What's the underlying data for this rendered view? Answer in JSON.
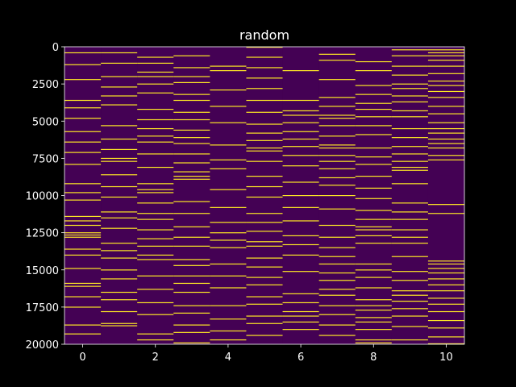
{
  "chart_data": {
    "type": "heatmap",
    "title": "random",
    "xlabel": "",
    "ylabel": "",
    "columns": 11,
    "rows": 20000,
    "xlim": [
      -0.5,
      10.5
    ],
    "ylim": [
      20000,
      0
    ],
    "y_inverted": true,
    "x_ticks": [
      0,
      2,
      4,
      6,
      8,
      10
    ],
    "x_tick_labels": [
      "0",
      "2",
      "4",
      "6",
      "8",
      "10"
    ],
    "y_ticks": [
      0,
      2500,
      5000,
      7500,
      10000,
      12500,
      15000,
      17500,
      20000
    ],
    "y_tick_labels": [
      "0",
      "2500",
      "5000",
      "7500",
      "10000",
      "12500",
      "15000",
      "17500",
      "20000"
    ],
    "value_range": [
      0,
      1
    ],
    "colormap": "viridis",
    "low_color": "#440154",
    "high_color": "#fde725",
    "background_color": "#000000",
    "text_color": "#ffffff",
    "grid": false,
    "legend": "none",
    "cells_with_value_1": [
      [
        400,
        1200,
        2200,
        3600,
        4100,
        4800,
        5700,
        6400,
        7100,
        7900,
        9200,
        9800,
        10300,
        11400,
        11700,
        12000,
        12500,
        12650,
        12800,
        13600,
        14000,
        14900,
        15900,
        16100,
        16800,
        17500,
        18700,
        19300
      ],
      [
        400,
        1100,
        2000,
        2700,
        3300,
        3900,
        5300,
        6200,
        6900,
        7500,
        7700,
        8600,
        9400,
        10100,
        11100,
        11500,
        12200,
        13200,
        13700,
        14200,
        15000,
        15600,
        16500,
        17000,
        17800,
        18600,
        18750
      ],
      [
        700,
        1100,
        1700,
        2000,
        2500,
        3100,
        4200,
        4900,
        5500,
        6000,
        6400,
        7200,
        8100,
        9200,
        9600,
        9800,
        10500,
        11200,
        11600,
        12300,
        12900,
        13400,
        14000,
        14300,
        15400,
        16300,
        17200,
        18000,
        19300,
        19700
      ],
      [
        600,
        1400,
        2000,
        2400,
        3200,
        3600,
        4400,
        4900,
        5600,
        6100,
        6500,
        7200,
        7800,
        8400,
        8700,
        8900,
        10400,
        11200,
        12100,
        12800,
        13400,
        14300,
        14700,
        15400,
        15900,
        16500,
        17400,
        17900,
        18700,
        19200,
        19900
      ],
      [
        1300,
        1600,
        2900,
        4000,
        5100,
        6600,
        7600,
        8200,
        9600,
        10800,
        11800,
        12500,
        13000,
        13500,
        14600,
        15400,
        16200,
        17400,
        18300,
        19100,
        19700
      ],
      [
        0,
        700,
        1400,
        2100,
        2800,
        3600,
        4400,
        5200,
        5800,
        6300,
        6800,
        7000,
        7700,
        8700,
        9400,
        10100,
        11200,
        11800,
        12400,
        13100,
        13400,
        14200,
        14800,
        15500,
        16000,
        16800,
        17300,
        18100,
        18600,
        19400
      ],
      [
        1600,
        3600,
        4300,
        4600,
        5100,
        5700,
        6200,
        6700,
        7300,
        8000,
        9100,
        10000,
        10800,
        11700,
        12700,
        13300,
        14000,
        15100,
        16600,
        17200,
        17800,
        18100,
        18500,
        19000
      ],
      [
        500,
        900,
        2200,
        3400,
        4000,
        4600,
        4800,
        5300,
        6000,
        6600,
        6800,
        7300,
        7700,
        8200,
        8800,
        9300,
        10000,
        10900,
        12000,
        12800,
        13500,
        14100,
        14600,
        15200,
        15700,
        16300,
        16700,
        17400,
        18000,
        18700,
        19400
      ],
      [
        1000,
        1600,
        2600,
        3200,
        3800,
        4200,
        4700,
        5300,
        5900,
        6800,
        7400,
        7900,
        8700,
        9500,
        10200,
        11000,
        11600,
        12100,
        12300,
        12700,
        13200,
        14600,
        15000,
        15500,
        16200,
        17000,
        17400,
        17700,
        18200,
        18500,
        19000,
        19700,
        19900
      ],
      [
        200,
        600,
        1300,
        1900,
        2500,
        2800,
        3300,
        3700,
        4300,
        4700,
        5500,
        6100,
        6700,
        7200,
        7700,
        8100,
        8300,
        9200,
        10500,
        11100,
        11600,
        12300,
        12800,
        13200,
        14100,
        15100,
        15700,
        16400,
        16700,
        17100,
        17600,
        18100,
        18800,
        19700
      ],
      [
        200,
        400,
        600,
        900,
        1300,
        1800,
        2300,
        2600,
        3000,
        3400,
        4000,
        4500,
        5100,
        5500,
        5800,
        6200,
        6500,
        6800,
        7300,
        7600,
        10600,
        11200,
        14400,
        14600,
        14900,
        15200,
        15600,
        16000,
        16400,
        16900,
        17300,
        17800,
        18400,
        18900,
        19500,
        20000
      ]
    ]
  }
}
